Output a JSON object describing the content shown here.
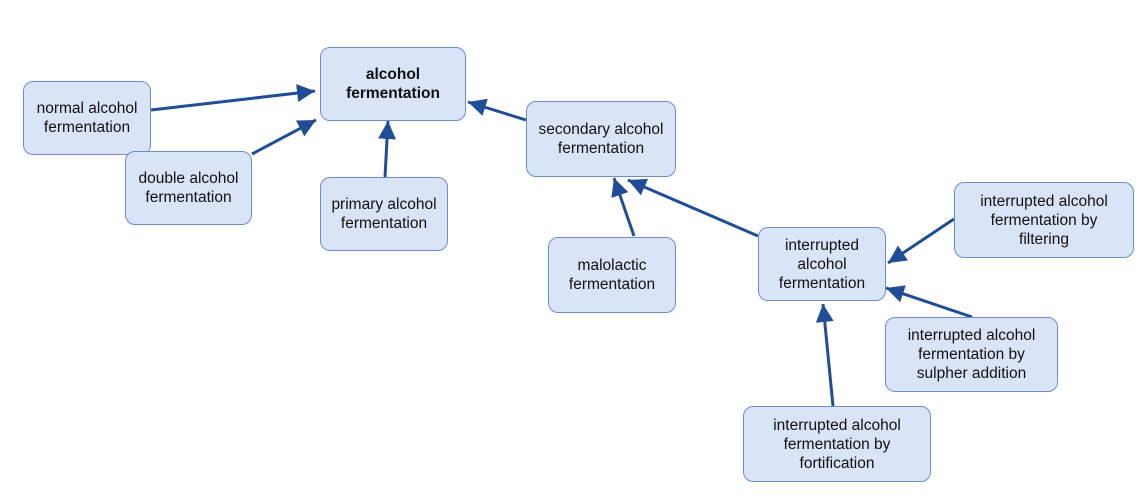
{
  "colors": {
    "node_fill": "#dae4f7",
    "node_border": "#6a8fca",
    "edge": "#1f4e96"
  },
  "nodes": {
    "alcohol_fermentation": "alcohol\nfermentation",
    "normal": "normal alcohol\nfermentation",
    "double": "double alcohol\nfermentation",
    "primary": "primary alcohol\nfermentation",
    "secondary": "secondary alcohol\nfermentation",
    "malolactic": "malolactic\nfermentation",
    "interrupted": "interrupted\nalcohol\nfermentation",
    "by_filtering": "interrupted alcohol\nfermentation by\nfiltering",
    "by_sulpher": "interrupted alcohol\nfermentation by\nsulpher addition",
    "by_fortification": "interrupted alcohol\nfermentation by\nfortification"
  },
  "edges": [
    {
      "from": "normal",
      "to": "alcohol_fermentation"
    },
    {
      "from": "double",
      "to": "alcohol_fermentation"
    },
    {
      "from": "primary",
      "to": "alcohol_fermentation"
    },
    {
      "from": "secondary",
      "to": "alcohol_fermentation"
    },
    {
      "from": "malolactic",
      "to": "secondary"
    },
    {
      "from": "interrupted",
      "to": "secondary"
    },
    {
      "from": "by_filtering",
      "to": "interrupted"
    },
    {
      "from": "by_sulpher",
      "to": "interrupted"
    },
    {
      "from": "by_fortification",
      "to": "interrupted"
    }
  ]
}
